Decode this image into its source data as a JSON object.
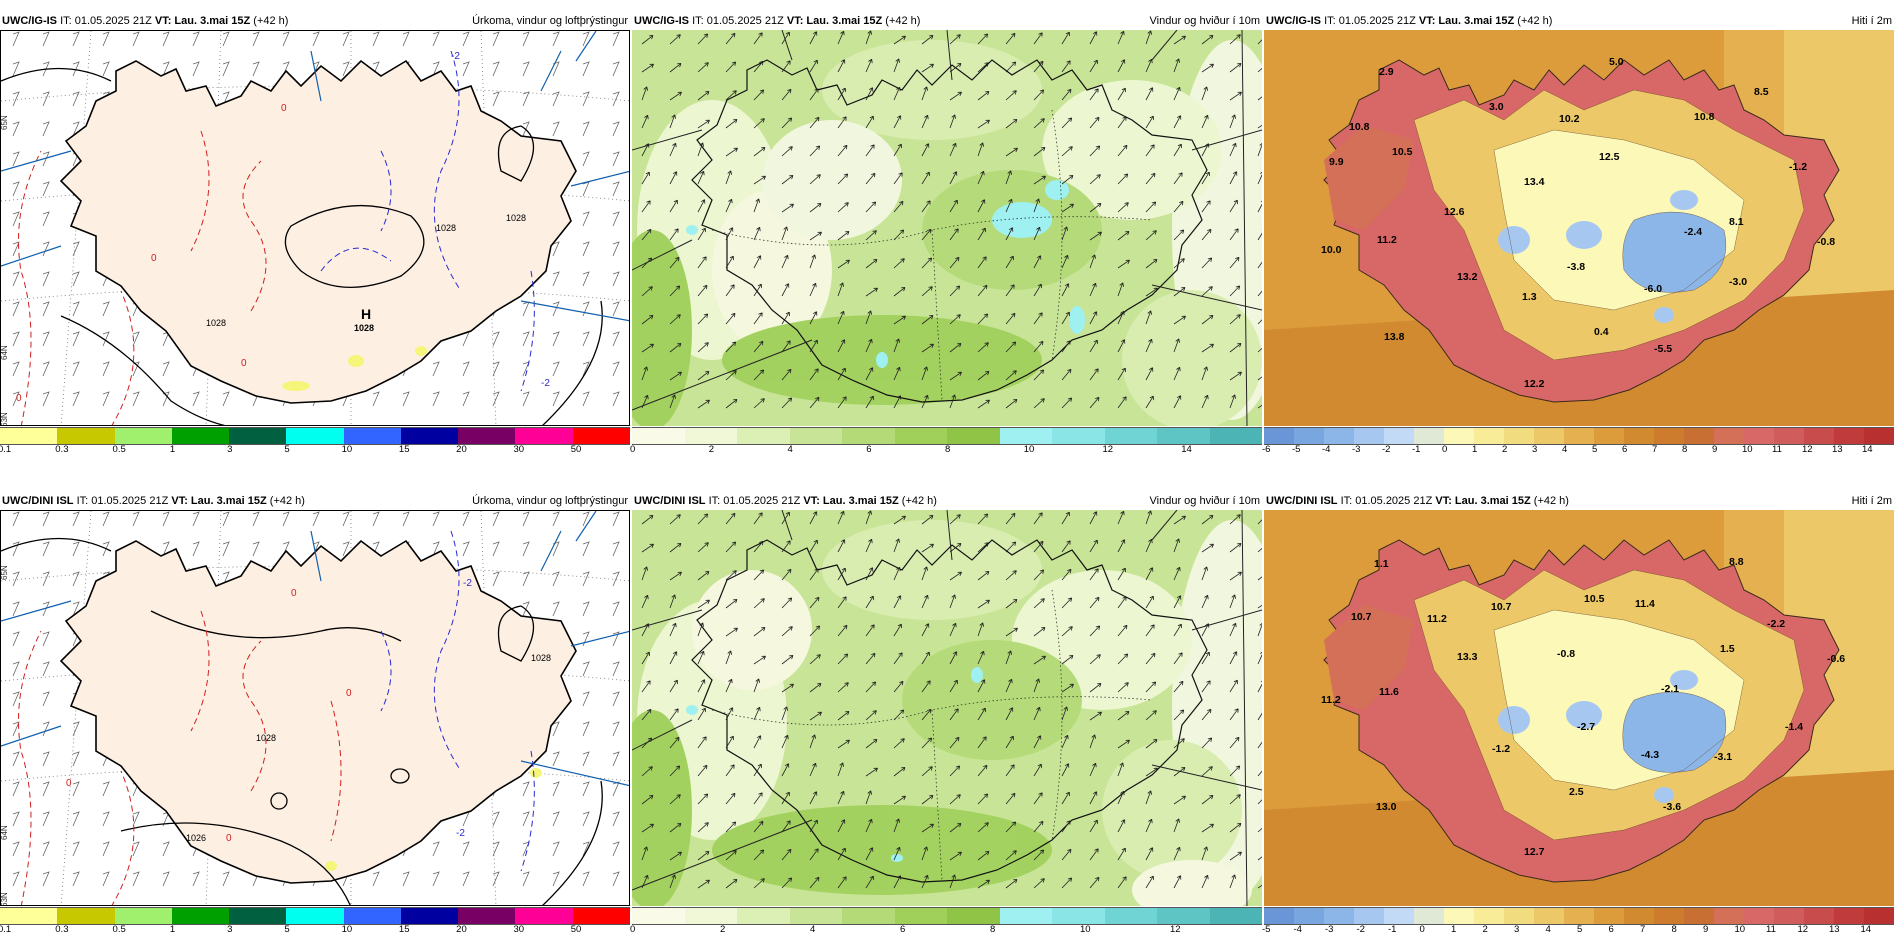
{
  "rows": [
    {
      "model": "UWC/IG-IS",
      "panels": [
        {
          "kind": "precip",
          "it": "IT: 01.05.2025 21Z",
          "vt_label": "VT:",
          "vt": "Lau. 3.mai 15Z",
          "lead": "(+42 h)",
          "title": "Úrkoma, vindur og loftþrýstingur",
          "isobars": [
            "1028",
            "1028",
            "1028"
          ],
          "high": "H",
          "high_value": "1028",
          "rain_labels": [
            "0",
            "0",
            "0",
            "0",
            "-2",
            "-2"
          ],
          "lat_labels": [
            "65N",
            "64N",
            "63N"
          ]
        },
        {
          "kind": "wind",
          "it": "IT: 01.05.2025 21Z",
          "vt_label": "VT:",
          "vt": "Lau. 3.mai 15Z",
          "lead": "(+42 h)",
          "title": "Vindur og hviður í 10m"
        },
        {
          "kind": "temp",
          "it": "IT: 01.05.2025 21Z",
          "vt_label": "VT:",
          "vt": "Lau. 3.mai 15Z",
          "lead": "(+42 h)",
          "title": "Hiti í 2m",
          "temps": [
            "2.9",
            "5.0",
            "8.5",
            "10.8",
            "3.0",
            "10.2",
            "10.8",
            "9.9",
            "10.5",
            "12.5",
            "13.4",
            "-1.2",
            "12.6",
            "-2.4",
            "8.1",
            "10.0",
            "11.2",
            "-0.8",
            "-3.8",
            "13.2",
            "-6.0",
            "-3.0",
            "1.3",
            "0.4",
            "-5.5",
            "13.8",
            "12.2"
          ]
        }
      ]
    },
    {
      "model": "UWC/DINI ISL",
      "panels": [
        {
          "kind": "precip",
          "it": "IT: 01.05.2025 21Z",
          "vt_label": "VT:",
          "vt": "Lau. 3.mai 15Z",
          "lead": "(+42 h)",
          "title": "Úrkoma, vindur og loftþrýstingur",
          "isobars": [
            "1028",
            "1026",
            "1028"
          ],
          "high": "",
          "high_value": "",
          "rain_labels": [
            "0",
            "0",
            "0",
            "0",
            "-2",
            "-2"
          ],
          "lat_labels": [
            "65N",
            "64N",
            "63N"
          ]
        },
        {
          "kind": "wind",
          "it": "IT: 01.05.2025 21Z",
          "vt_label": "VT:",
          "vt": "Lau. 3.mai 15Z",
          "lead": "(+42 h)",
          "title": "Vindur og hviður í 10m"
        },
        {
          "kind": "temp",
          "it": "IT: 01.05.2025 21Z",
          "vt_label": "VT:",
          "vt": "Lau. 3.mai 15Z",
          "lead": "(+42 h)",
          "title": "Hiti í 2m",
          "temps": [
            "1.1",
            "8.8",
            "10.7",
            "10.5",
            "11.4",
            "10.7",
            "11.2",
            "-2.2",
            "13.3",
            "-0.8",
            "1.5",
            "-0.6",
            "11.2",
            "11.6",
            "-2.1",
            "-2.7",
            "-1.4",
            "-1.2",
            "-4.3",
            "-3.1",
            "2.5",
            "-3.6",
            "13.0",
            "12.7"
          ]
        }
      ]
    }
  ],
  "legends": {
    "precip": {
      "colors": [
        "#ffff99",
        "#c8c800",
        "#a0f06e",
        "#00a000",
        "#006040",
        "#00ffee",
        "#3264ff",
        "#0000a0",
        "#780064",
        "#ff0096",
        "#ff0000"
      ],
      "ticks": [
        "0.1",
        "0.3",
        "0.5",
        "1",
        "3",
        "5",
        "10",
        "15",
        "20",
        "30",
        "50"
      ]
    },
    "wind": {
      "colors": [
        "#fafae8",
        "#f0f8d8",
        "#dcefb4",
        "#c8e496",
        "#b4da78",
        "#a0cf5a",
        "#8fc446",
        "#9ff0f0",
        "#8ae6e6",
        "#70d4d4",
        "#5ec4c4",
        "#4cb4b4"
      ],
      "ticks_row1": [
        "0",
        "2",
        "4",
        "6",
        "8",
        "10",
        "12",
        "14"
      ],
      "ticks_row2": [
        "0",
        "2",
        "4",
        "6",
        "8",
        "10",
        "12"
      ]
    },
    "temp": {
      "colors": [
        "#6a96d8",
        "#7aa6e0",
        "#8db6e8",
        "#a6c8f0",
        "#c2daf6",
        "#dfe9d6",
        "#fcf8b8",
        "#f8ec98",
        "#f2dc80",
        "#ecc868",
        "#e4b050",
        "#dc9c3c",
        "#d28a30",
        "#cc7c2c",
        "#c87034",
        "#d47058",
        "#d86868",
        "#d05c5c",
        "#c84c4c",
        "#c03c3c",
        "#b83030"
      ],
      "ticks_row1": [
        "-6",
        "-5",
        "-4",
        "-3",
        "-2",
        "-1",
        "0",
        "1",
        "2",
        "3",
        "4",
        "5",
        "6",
        "7",
        "8",
        "9",
        "10",
        "11",
        "12",
        "13",
        "14"
      ],
      "ticks_row2": [
        "-5",
        "-4",
        "-3",
        "-2",
        "-1",
        "0",
        "1",
        "2",
        "3",
        "4",
        "5",
        "6",
        "7",
        "8",
        "9",
        "10",
        "11",
        "12",
        "13",
        "14"
      ]
    }
  }
}
